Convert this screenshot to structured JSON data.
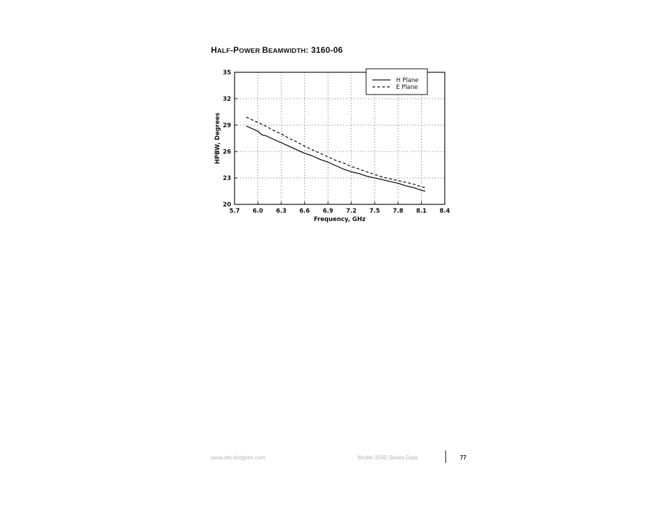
{
  "page": {
    "title_prefix_H": "H",
    "title_alf": "ALF",
    "title_dash": "-P",
    "title_ower": "OWER ",
    "title_B": "B",
    "title_eamwidth": "EAMWIDTH",
    "title_suffix": ": 3160-06",
    "footer_url": "www.ets-lindgren.com",
    "footer_doc": "Model 3160 Series Data",
    "page_number": "77"
  },
  "chart_data": {
    "type": "line",
    "xlabel": "Frequency, GHz",
    "ylabel": "HPBW, Degrees",
    "xlim": [
      5.7,
      8.4
    ],
    "ylim": [
      20,
      35
    ],
    "xticks": [
      "5.7",
      "6.0",
      "6.3",
      "6.6",
      "6.9",
      "7.2",
      "7.5",
      "7.8",
      "8.1",
      "8.4"
    ],
    "yticks": [
      "20",
      "23",
      "26",
      "29",
      "32",
      "35"
    ],
    "grid": true,
    "legend_position": "top-right",
    "series": [
      {
        "name": "H Plane",
        "style": "solid",
        "x": [
          5.85,
          5.9,
          5.95,
          6.0,
          6.05,
          6.1,
          6.2,
          6.3,
          6.4,
          6.5,
          6.6,
          6.7,
          6.8,
          6.9,
          7.0,
          7.1,
          7.2,
          7.3,
          7.4,
          7.5,
          7.6,
          7.7,
          7.8,
          7.9,
          8.0,
          8.1,
          8.15
        ],
        "values": [
          28.9,
          28.7,
          28.5,
          28.3,
          27.9,
          27.8,
          27.4,
          27.0,
          26.6,
          26.2,
          25.8,
          25.5,
          25.1,
          24.8,
          24.4,
          24.0,
          23.7,
          23.5,
          23.2,
          23.0,
          22.8,
          22.6,
          22.4,
          22.1,
          21.9,
          21.6,
          21.5
        ]
      },
      {
        "name": "E Plane",
        "style": "dashed",
        "x": [
          5.85,
          5.9,
          6.0,
          6.1,
          6.2,
          6.3,
          6.4,
          6.5,
          6.6,
          6.7,
          6.8,
          6.9,
          7.0,
          7.1,
          7.2,
          7.3,
          7.4,
          7.5,
          7.6,
          7.7,
          7.8,
          7.9,
          8.0,
          8.1,
          8.15
        ],
        "values": [
          29.9,
          29.7,
          29.3,
          28.9,
          28.4,
          28.0,
          27.5,
          27.1,
          26.6,
          26.2,
          25.8,
          25.4,
          25.0,
          24.7,
          24.3,
          24.0,
          23.7,
          23.4,
          23.1,
          22.9,
          22.7,
          22.5,
          22.3,
          22.0,
          21.9
        ]
      }
    ]
  }
}
